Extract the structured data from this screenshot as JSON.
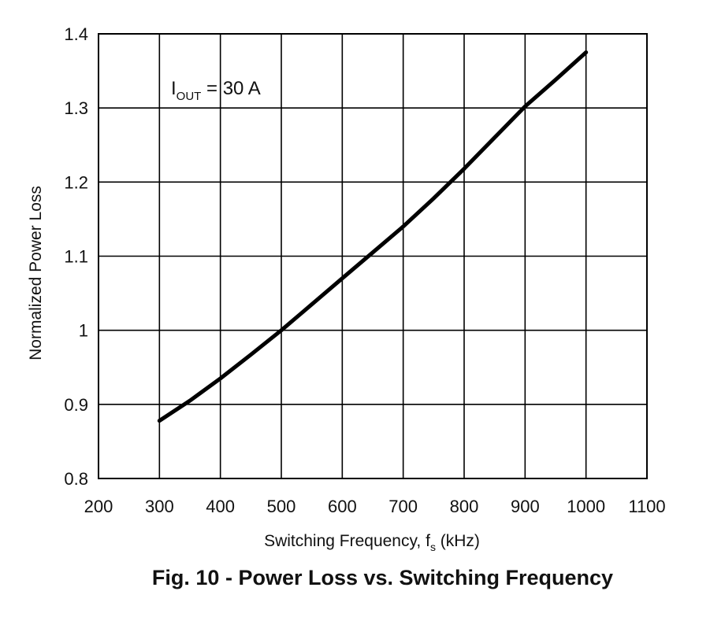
{
  "caption": "Fig. 10 - Power Loss vs. Switching Frequency",
  "chart_data": {
    "type": "line",
    "title": "",
    "xlabel_main": "Switching Frequency, f",
    "xlabel_sub": "s",
    "xlabel_unit": " (kHz)",
    "ylabel": "Normalized Power Loss",
    "xlim": [
      200,
      1100
    ],
    "ylim": [
      0.8,
      1.4
    ],
    "xticks": [
      "200",
      "300",
      "400",
      "500",
      "600",
      "700",
      "800",
      "900",
      "1000",
      "1100"
    ],
    "yticks": [
      "0.8",
      "0.9",
      "1",
      "1.1",
      "1.2",
      "1.3",
      "1.4"
    ],
    "xtick_values": [
      200,
      300,
      400,
      500,
      600,
      700,
      800,
      900,
      1000,
      1100
    ],
    "ytick_values": [
      0.8,
      0.9,
      1.0,
      1.1,
      1.2,
      1.3,
      1.4
    ],
    "grid": true,
    "annotation": {
      "main": "I",
      "sub": "OUT",
      "rest": " = 30 A"
    },
    "line_color": "#000000",
    "series": [
      {
        "x": [
          300,
          350,
          400,
          450,
          500,
          550,
          600,
          650,
          700,
          750,
          800,
          850,
          900,
          950,
          1000
        ],
        "y": [
          0.878,
          0.905,
          0.935,
          0.967,
          1.0,
          1.035,
          1.07,
          1.105,
          1.14,
          1.178,
          1.218,
          1.26,
          1.302,
          1.338,
          1.375
        ]
      }
    ]
  }
}
